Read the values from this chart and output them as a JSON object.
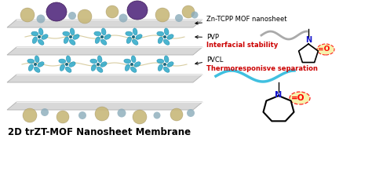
{
  "title": "2D trZT-MOF Nanosheet Membrane",
  "label_mof": "Zn-TCPP MOF nanosheet",
  "label_pvp": "PVP",
  "label_interfacial": "Interfacial stability",
  "label_pvcl": "PVCL",
  "label_thermo": "Thermoresponisve separation",
  "bg_color": "#ffffff",
  "sheet_color": "#d8d8d8",
  "sheet_highlight": "#f0f0f0",
  "sheet_shadow": "#b0b0b0",
  "mof_color": "#2aa8c8",
  "mof_chain_color": "#c8b87a",
  "purple_particle": "#5c3585",
  "tan_particle": "#c8b87a",
  "gray_particle": "#8aabba",
  "polymer_pvp_color": "#aaaaaa",
  "polymer_pvcl_color": "#40c0e0",
  "text_black": "#000000",
  "text_red": "#cc0000",
  "text_blue": "#1515cc",
  "highlight_color": "#f5f0a0",
  "title_fontsize": 8.5,
  "small_fontsize": 6.0
}
